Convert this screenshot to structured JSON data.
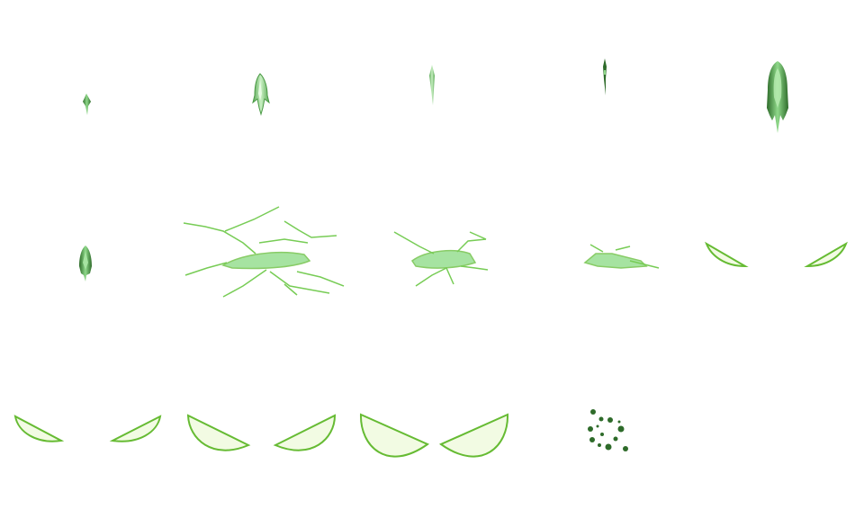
{
  "sheet": {
    "kind": "sprite-sheet",
    "background": "#ffffff",
    "palette": {
      "dark_green": "#2e6b2a",
      "mid_green": "#4a9a45",
      "light_green": "#8fd98a",
      "fill_green": "#a6e3a1",
      "outline_green": "#66bb33",
      "leaf_fill": "#f2fbe3",
      "line_green": "#77cc55"
    },
    "sprites": [
      {
        "name": "tiny-flame-dart",
        "row": 1
      },
      {
        "name": "small-flame-bolt",
        "row": 1
      },
      {
        "name": "needle-flame",
        "row": 1
      },
      {
        "name": "thin-spike",
        "row": 1
      },
      {
        "name": "large-flame-bolt",
        "row": 1
      },
      {
        "name": "medium-flame-dart",
        "row": 2
      },
      {
        "name": "lightning-splash-large",
        "row": 2
      },
      {
        "name": "lightning-splash-medium",
        "row": 2
      },
      {
        "name": "lightning-splash-small",
        "row": 2
      },
      {
        "name": "crescent-pair-small",
        "row": 2
      },
      {
        "name": "crescent-pair-medium",
        "row": 3
      },
      {
        "name": "crescent-pair-large",
        "row": 3
      },
      {
        "name": "crescent-pair-xlarge",
        "row": 3
      },
      {
        "name": "spore-particle-cluster",
        "row": 3
      }
    ]
  }
}
